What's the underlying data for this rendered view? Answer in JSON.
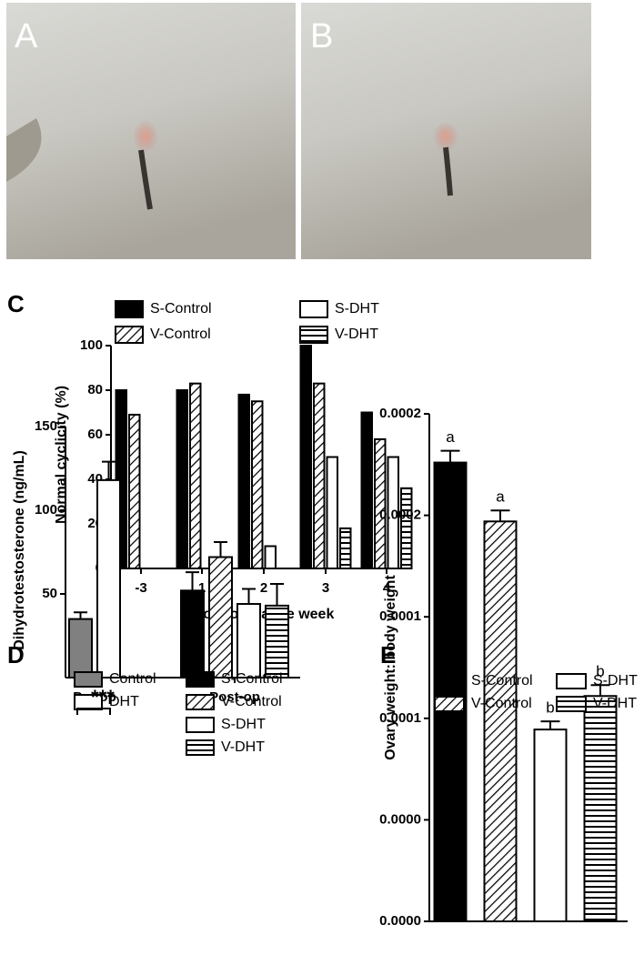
{
  "images": [
    {
      "label": "A"
    },
    {
      "label": "B"
    }
  ],
  "chart_data": [
    {
      "type": "bar",
      "panel": "C",
      "y_label": "Normal cyclicity (%)",
      "x_label": "Post-operative week",
      "categories": [
        "-3",
        "1",
        "2",
        "3",
        "4"
      ],
      "series": [
        {
          "name": "S-Control",
          "color": "#000000",
          "pattern": "solid",
          "values": [
            80,
            80,
            78,
            100,
            70
          ]
        },
        {
          "name": "V-Control",
          "color": "#ffffff",
          "pattern": "diagonal",
          "values": [
            69,
            83,
            75,
            83,
            58
          ]
        },
        {
          "name": "S-DHT",
          "color": "#ffffff",
          "pattern": "solid",
          "values": [
            null,
            null,
            10,
            50,
            50
          ]
        },
        {
          "name": "V-DHT",
          "color": "#ffffff",
          "pattern": "horizontal",
          "values": [
            null,
            null,
            null,
            18,
            36
          ]
        }
      ],
      "ylim": [
        0,
        100
      ],
      "yticks": [
        0,
        20,
        40,
        60,
        80,
        100
      ]
    },
    {
      "type": "bar",
      "panel": "D",
      "y_label": "Dihydrotestosterone (ng/mL)",
      "annotation": "***",
      "categories": [
        "Pre-op",
        "Post-op"
      ],
      "series": [
        {
          "name": "Control",
          "color": "#808080",
          "pattern": "solid",
          "values": [
            35,
            null
          ],
          "errors": [
            4,
            null
          ]
        },
        {
          "name": "DHT",
          "color": "#ffffff",
          "pattern": "solid",
          "values": [
            118,
            null
          ],
          "errors": [
            11,
            null
          ]
        },
        {
          "name": "S-Control",
          "color": "#000000",
          "pattern": "solid",
          "values": [
            null,
            52
          ],
          "errors": [
            null,
            11
          ]
        },
        {
          "name": "V-Control",
          "color": "#ffffff",
          "pattern": "diagonal",
          "values": [
            null,
            72
          ],
          "errors": [
            null,
            9
          ]
        },
        {
          "name": "S-DHT",
          "color": "#ffffff",
          "pattern": "solid",
          "values": [
            null,
            44
          ],
          "errors": [
            null,
            9
          ]
        },
        {
          "name": "V-DHT",
          "color": "#ffffff",
          "pattern": "horizontal",
          "values": [
            null,
            43
          ],
          "errors": [
            null,
            13
          ]
        }
      ],
      "ylim": [
        0,
        150
      ],
      "yticks": [
        50,
        100,
        150
      ]
    },
    {
      "type": "bar",
      "panel": "E",
      "y_label": "Ovary weight: body weight",
      "series": [
        {
          "name": "S-Control",
          "color": "#000000",
          "pattern": "solid",
          "values": [
            0.000226
          ],
          "errors": [
            5.8e-06
          ],
          "labels": [
            "a"
          ]
        },
        {
          "name": "V-Control",
          "color": "#ffffff",
          "pattern": "diagonal",
          "values": [
            0.000197
          ],
          "errors": [
            5.4e-06
          ],
          "labels": [
            "a"
          ]
        },
        {
          "name": "S-DHT",
          "color": "#ffffff",
          "pattern": "solid",
          "values": [
            9.45e-05
          ],
          "errors": [
            4e-06
          ],
          "labels": [
            "b"
          ]
        },
        {
          "name": "V-DHT",
          "color": "#ffffff",
          "pattern": "horizontal",
          "values": [
            0.000111
          ],
          "errors": [
            5.4e-06
          ],
          "labels": [
            "b"
          ]
        }
      ],
      "ylim": [
        0,
        0.00025
      ],
      "yticks": [
        {
          "value": 0,
          "label": "0.0000"
        },
        {
          "value": 5e-05,
          "label": "0.0000"
        },
        {
          "value": 0.0001,
          "label": "0.0001"
        },
        {
          "value": 0.00015,
          "label": "0.0001"
        },
        {
          "value": 0.0002,
          "label": "0.0002"
        },
        {
          "value": 0.00025,
          "label": "0.0002"
        }
      ]
    }
  ]
}
